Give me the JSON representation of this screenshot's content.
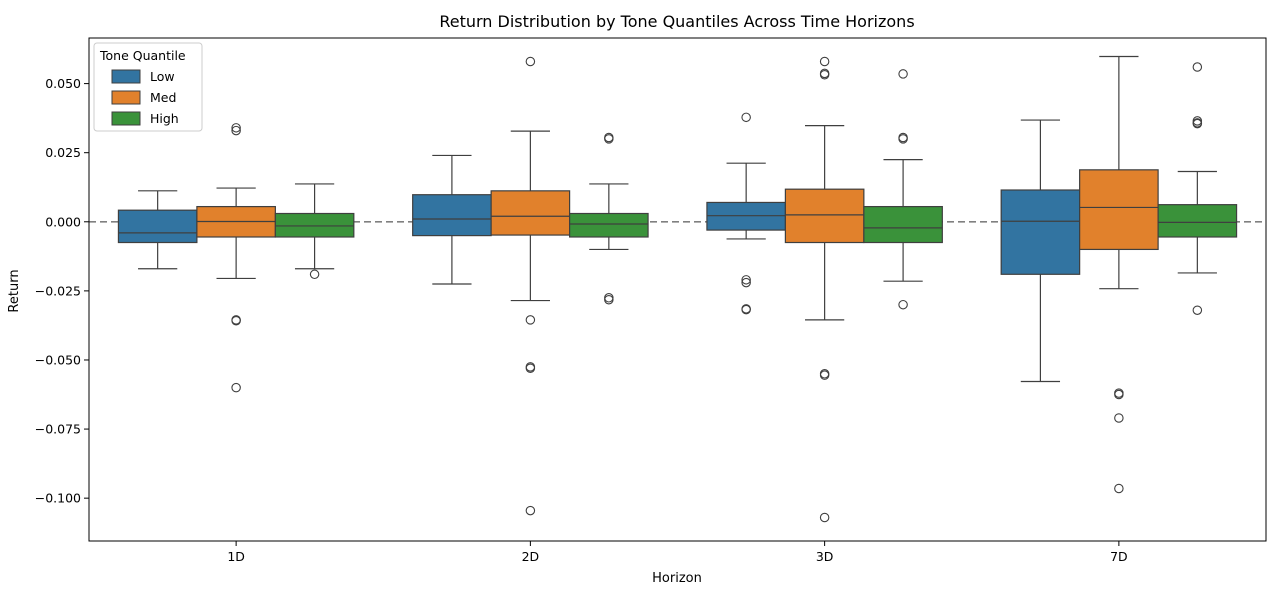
{
  "chart_data": {
    "type": "box",
    "title": "Return Distribution by Tone Quantiles Across Time Horizons",
    "xlabel": "Horizon",
    "ylabel": "Return",
    "categories": [
      "1D",
      "2D",
      "3D",
      "7D"
    ],
    "ylim": [
      -0.1155,
      0.0665
    ],
    "yticks": [
      0.05,
      0.025,
      0.0,
      -0.025,
      -0.05,
      -0.075,
      -0.1
    ],
    "ytick_labels": [
      "0.050",
      "0.025",
      "0.000",
      "−0.025",
      "−0.050",
      "−0.075",
      "−0.100"
    ],
    "reference_line": {
      "y": 0.0,
      "style": "dashed",
      "color": "#808080"
    },
    "legend": {
      "title": "Tone Quantile",
      "placement": "upper-left"
    },
    "series": [
      {
        "name": "Low",
        "color": "#3274a1",
        "boxes": [
          {
            "whisker_low": -0.017,
            "q1": -0.0075,
            "median": -0.004,
            "q3": 0.0042,
            "whisker_high": 0.0112,
            "outliers": []
          },
          {
            "whisker_low": -0.0225,
            "q1": -0.005,
            "median": 0.001,
            "q3": 0.0098,
            "whisker_high": 0.024,
            "outliers": []
          },
          {
            "whisker_low": -0.0062,
            "q1": -0.003,
            "median": 0.0022,
            "q3": 0.007,
            "whisker_high": 0.0212,
            "outliers": [
              0.0378,
              -0.021,
              -0.022,
              -0.0315,
              -0.0318
            ]
          },
          {
            "whisker_low": -0.0578,
            "q1": -0.019,
            "median": 0.0002,
            "q3": 0.0115,
            "whisker_high": 0.0368,
            "outliers": []
          }
        ]
      },
      {
        "name": "Med",
        "color": "#e1812c",
        "boxes": [
          {
            "whisker_low": -0.0205,
            "q1": -0.0055,
            "median": 0.0001,
            "q3": 0.0055,
            "whisker_high": 0.0122,
            "outliers": [
              0.034,
              0.033,
              -0.0355,
              -0.0358,
              -0.06
            ]
          },
          {
            "whisker_low": -0.0285,
            "q1": -0.0048,
            "median": 0.002,
            "q3": 0.0112,
            "whisker_high": 0.0328,
            "outliers": [
              0.058,
              -0.0355,
              -0.0525,
              -0.053,
              -0.1045
            ]
          },
          {
            "whisker_low": -0.0355,
            "q1": -0.0075,
            "median": 0.0025,
            "q3": 0.0118,
            "whisker_high": 0.0348,
            "outliers": [
              0.058,
              0.0537,
              0.0532,
              -0.055,
              -0.0555,
              -0.107
            ]
          },
          {
            "whisker_low": -0.0242,
            "q1": -0.01,
            "median": 0.0052,
            "q3": 0.0188,
            "whisker_high": 0.0598,
            "outliers": [
              -0.062,
              -0.0625,
              -0.071,
              -0.0965
            ]
          }
        ]
      },
      {
        "name": "High",
        "color": "#3a923a",
        "boxes": [
          {
            "whisker_low": -0.017,
            "q1": -0.0055,
            "median": -0.0015,
            "q3": 0.003,
            "whisker_high": 0.0137,
            "outliers": [
              -0.019
            ]
          },
          {
            "whisker_low": -0.01,
            "q1": -0.0055,
            "median": -0.0008,
            "q3": 0.003,
            "whisker_high": 0.0137,
            "outliers": [
              0.0305,
              0.03,
              -0.0275,
              -0.0282
            ]
          },
          {
            "whisker_low": -0.0215,
            "q1": -0.0075,
            "median": -0.0022,
            "q3": 0.0055,
            "whisker_high": 0.0225,
            "outliers": [
              0.0535,
              0.0305,
              0.03,
              -0.03
            ]
          },
          {
            "whisker_low": -0.0185,
            "q1": -0.0055,
            "median": -0.0002,
            "q3": 0.0062,
            "whisker_high": 0.0182,
            "outliers": [
              0.056,
              0.0365,
              0.0358,
              0.0355,
              -0.032
            ]
          }
        ]
      }
    ]
  }
}
